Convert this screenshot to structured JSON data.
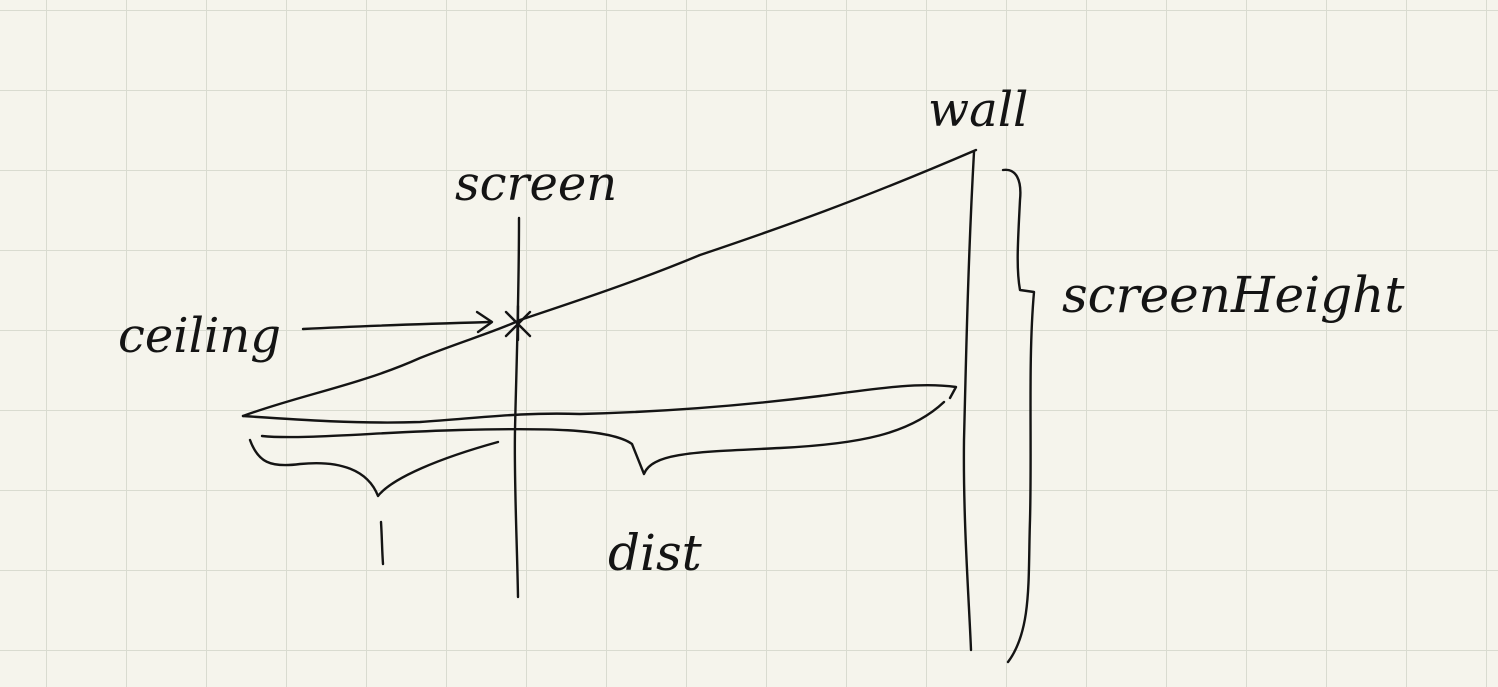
{
  "labels": {
    "wall": "wall",
    "screen": "screen",
    "ceiling": "ceiling",
    "screen_height": "screenHeight",
    "one": "1",
    "dist": "dist"
  },
  "colors": {
    "paper": "#f5f4ec",
    "grid": "#d9dbd0",
    "ink": "#141414"
  }
}
